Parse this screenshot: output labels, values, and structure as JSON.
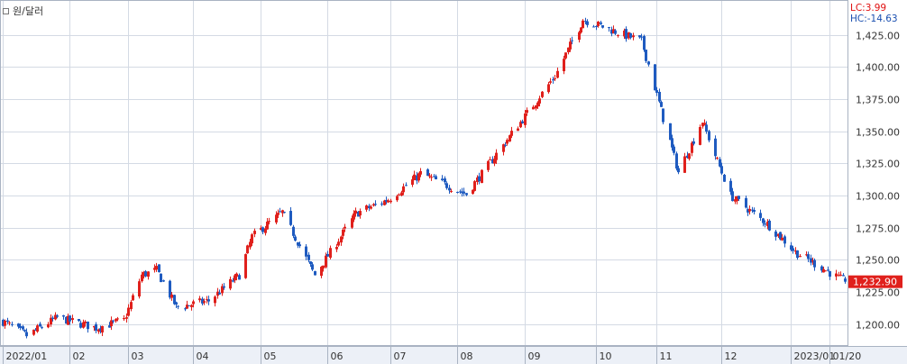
{
  "title": "원/달러",
  "indicators": {
    "lc": "LC:3.99",
    "hc": "HC:-14.63"
  },
  "colors": {
    "up": "#e0201c",
    "down": "#1f5bc0",
    "grid": "#d4dae4",
    "last_bg": "#e0201c",
    "axis_bg": "#ecf0f7"
  },
  "chart_data": {
    "type": "candlestick",
    "ylim": [
      1185,
      1450
    ],
    "yticks": [
      1200,
      1225,
      1250,
      1275,
      1300,
      1325,
      1350,
      1375,
      1400,
      1425
    ],
    "ytick_labels": [
      "1,200.00",
      "1,225.00",
      "1,250.00",
      "1,275.00",
      "1,300.00",
      "1,325.00",
      "1,350.00",
      "1,375.00",
      "1,400.00",
      "1,425.00"
    ],
    "x_range": [
      "2022-01-03",
      "2023-01-27"
    ],
    "xtick_labels": [
      {
        "date": "2022-01-03",
        "label": "2022/01"
      },
      {
        "date": "2022-02-03",
        "label": "02"
      },
      {
        "date": "2022-03-02",
        "label": "03"
      },
      {
        "date": "2022-04-01",
        "label": "04"
      },
      {
        "date": "2022-05-02",
        "label": "05"
      },
      {
        "date": "2022-06-02",
        "label": "06"
      },
      {
        "date": "2022-07-01",
        "label": "07"
      },
      {
        "date": "2022-08-01",
        "label": "08"
      },
      {
        "date": "2022-09-01",
        "label": "09"
      },
      {
        "date": "2022-10-04",
        "label": "10"
      },
      {
        "date": "2022-11-01",
        "label": "11"
      },
      {
        "date": "2022-12-01",
        "label": "12"
      },
      {
        "date": "2023-01-02",
        "label": "2023/01"
      },
      {
        "date": "2023-01-20",
        "label": "01/20"
      }
    ],
    "last_value": 1232.9,
    "last_label": "1,232.90",
    "monthly_closes": [
      {
        "date": "2022-01-03",
        "close": 1202
      },
      {
        "date": "2022-01-14",
        "close": 1191
      },
      {
        "date": "2022-01-28",
        "close": 1205
      },
      {
        "date": "2022-02-15",
        "close": 1197
      },
      {
        "date": "2022-02-28",
        "close": 1203
      },
      {
        "date": "2022-03-08",
        "close": 1238
      },
      {
        "date": "2022-03-15",
        "close": 1242
      },
      {
        "date": "2022-03-24",
        "close": 1213
      },
      {
        "date": "2022-04-08",
        "close": 1218
      },
      {
        "date": "2022-04-22",
        "close": 1238
      },
      {
        "date": "2022-04-28",
        "close": 1268
      },
      {
        "date": "2022-05-12",
        "close": 1287
      },
      {
        "date": "2022-05-27",
        "close": 1238
      },
      {
        "date": "2022-06-15",
        "close": 1286
      },
      {
        "date": "2022-06-30",
        "close": 1297
      },
      {
        "date": "2022-07-15",
        "close": 1317
      },
      {
        "date": "2022-08-05",
        "close": 1301
      },
      {
        "date": "2022-08-22",
        "close": 1339
      },
      {
        "date": "2022-09-15",
        "close": 1393
      },
      {
        "date": "2022-09-28",
        "close": 1437
      },
      {
        "date": "2022-10-25",
        "close": 1420
      },
      {
        "date": "2022-11-11",
        "close": 1318
      },
      {
        "date": "2022-11-22",
        "close": 1358
      },
      {
        "date": "2022-12-05",
        "close": 1300
      },
      {
        "date": "2022-12-22",
        "close": 1278
      },
      {
        "date": "2023-01-04",
        "close": 1256
      },
      {
        "date": "2023-01-27",
        "close": 1232.9
      }
    ]
  }
}
